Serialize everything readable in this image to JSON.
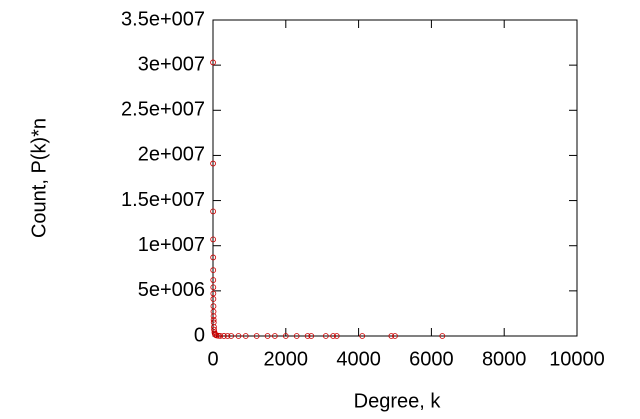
{
  "chart_data": {
    "type": "scatter",
    "x_label": "Degree, k",
    "y_label": "Count, P(k)*n",
    "series": [
      {
        "name": null,
        "color": "#cc0000",
        "x": [
          1,
          2,
          3,
          4,
          5,
          6,
          7,
          8,
          9,
          10,
          12,
          14,
          16,
          18,
          20,
          25,
          30,
          40,
          50,
          70,
          100,
          150,
          200,
          300,
          400,
          500,
          700,
          900,
          1200,
          1500,
          1700,
          2000,
          2300,
          2600,
          2700,
          3100,
          3300,
          3400,
          4100,
          4900,
          5000,
          6300
        ],
        "values": [
          30300000,
          19100000,
          13800000,
          10700000,
          8700000,
          7300000,
          6200000,
          5400000,
          4700000,
          4100000,
          3300000,
          2700000,
          2200000,
          1800000,
          1500000,
          1000000,
          700000,
          400000,
          250000,
          120000,
          60000,
          25000,
          12000,
          5000,
          2500,
          1500,
          700,
          400,
          200,
          100,
          80,
          50,
          30,
          20,
          15,
          10,
          8,
          6,
          4,
          3,
          2,
          1
        ]
      }
    ],
    "xlim": [
      0,
      10000
    ],
    "xticks": [
      0,
      2000,
      4000,
      6000,
      8000,
      10000
    ],
    "ylim": [
      0,
      35000000
    ],
    "yticks": [
      0,
      {
        "value": 5000000,
        "label": "5e+006"
      },
      {
        "value": 10000000,
        "label": "1e+007"
      },
      {
        "value": 15000000,
        "label": "1.5e+007"
      },
      {
        "value": 20000000,
        "label": "2e+007"
      },
      {
        "value": 25000000,
        "label": "2.5e+007"
      },
      {
        "value": 30000000,
        "label": "3e+007"
      },
      {
        "value": 35000000,
        "label": "3.5e+007"
      }
    ]
  }
}
